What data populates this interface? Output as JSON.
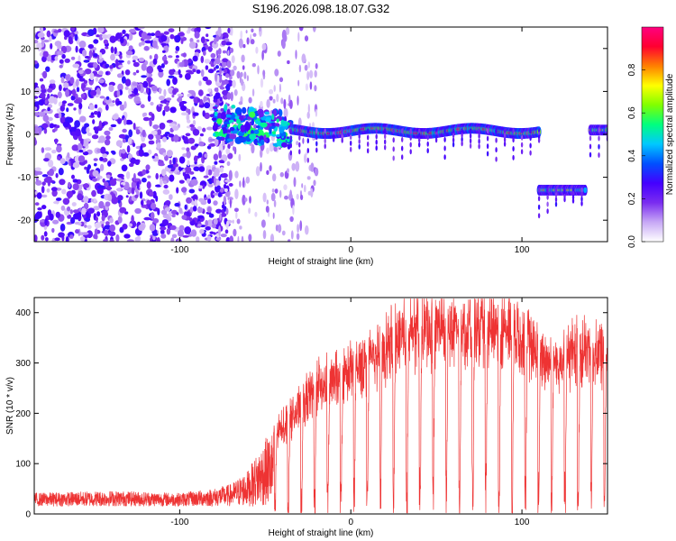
{
  "title": "S196.2026.098.18.07.G32",
  "chart_data": [
    {
      "type": "heatmap",
      "xlabel": "Height of straight line (km)",
      "ylabel": "Frequency (Hz)",
      "xlim": [
        -185,
        150
      ],
      "ylim": [
        -25,
        25
      ],
      "xticks": [
        -100,
        0,
        100
      ],
      "xtick_labels": [
        "-100",
        "0",
        "100"
      ],
      "yticks": [
        -20,
        -10,
        0,
        10,
        20
      ],
      "ytick_labels": [
        "-20",
        "-10",
        "0",
        "10",
        "20"
      ],
      "colorbar": {
        "label": "Normalized spectral amplitude",
        "range": [
          0,
          1
        ],
        "ticks": [
          0.0,
          0.2,
          0.4,
          0.6,
          0.8
        ],
        "tick_labels": [
          "0.0",
          "0.2",
          "0.4",
          "0.6",
          "0.8"
        ],
        "colormap": "rainbow",
        "colors": [
          "#ffffff",
          "#c7a8f5",
          "#7a2cf0",
          "#4400ff",
          "#0050ff",
          "#00c8ff",
          "#00ff7f",
          "#80ff00",
          "#ffff00",
          "#ff8000",
          "#ff0030",
          "#ff0080"
        ]
      },
      "features": [
        {
          "name": "noise",
          "x_range": [
            -185,
            -80
          ],
          "freq_range": [
            -25,
            25
          ],
          "level": 0.18
        },
        {
          "name": "onset cluster",
          "x_range": [
            -80,
            -35
          ],
          "freq_center": 3,
          "level": 0.45
        },
        {
          "name": "main line",
          "x_range": [
            -35,
            110
          ],
          "freq_center": 0.8,
          "level": 0.85
        },
        {
          "name": "shifted line",
          "x_range": [
            110,
            137
          ],
          "freq_center": -13,
          "level": 0.7
        },
        {
          "name": "return line",
          "x_range": [
            140,
            150
          ],
          "freq_center": 1,
          "level": 0.7
        }
      ]
    },
    {
      "type": "line",
      "xlabel": "Height of straight line (km)",
      "ylabel": "SNR (10 * v/v)",
      "xlim": [
        -185,
        150
      ],
      "ylim": [
        0,
        430
      ],
      "xticks": [
        -100,
        0,
        100
      ],
      "xtick_labels": [
        "-100",
        "0",
        "100"
      ],
      "yticks": [
        0,
        100,
        200,
        300,
        400
      ],
      "ytick_labels": [
        "0",
        "100",
        "200",
        "300",
        "400"
      ],
      "color": "#ee3333",
      "envelope": {
        "x": [
          -185,
          -140,
          -100,
          -80,
          -70,
          -60,
          -50,
          -40,
          -30,
          -20,
          -10,
          0,
          10,
          20,
          30,
          40,
          50,
          60,
          70,
          80,
          90,
          100,
          110,
          120,
          130,
          140,
          150
        ],
        "y": [
          30,
          35,
          30,
          40,
          50,
          80,
          150,
          190,
          230,
          280,
          290,
          310,
          340,
          360,
          390,
          400,
          405,
          410,
          400,
          400,
          405,
          390,
          345,
          330,
          350,
          355,
          350
        ]
      }
    }
  ]
}
